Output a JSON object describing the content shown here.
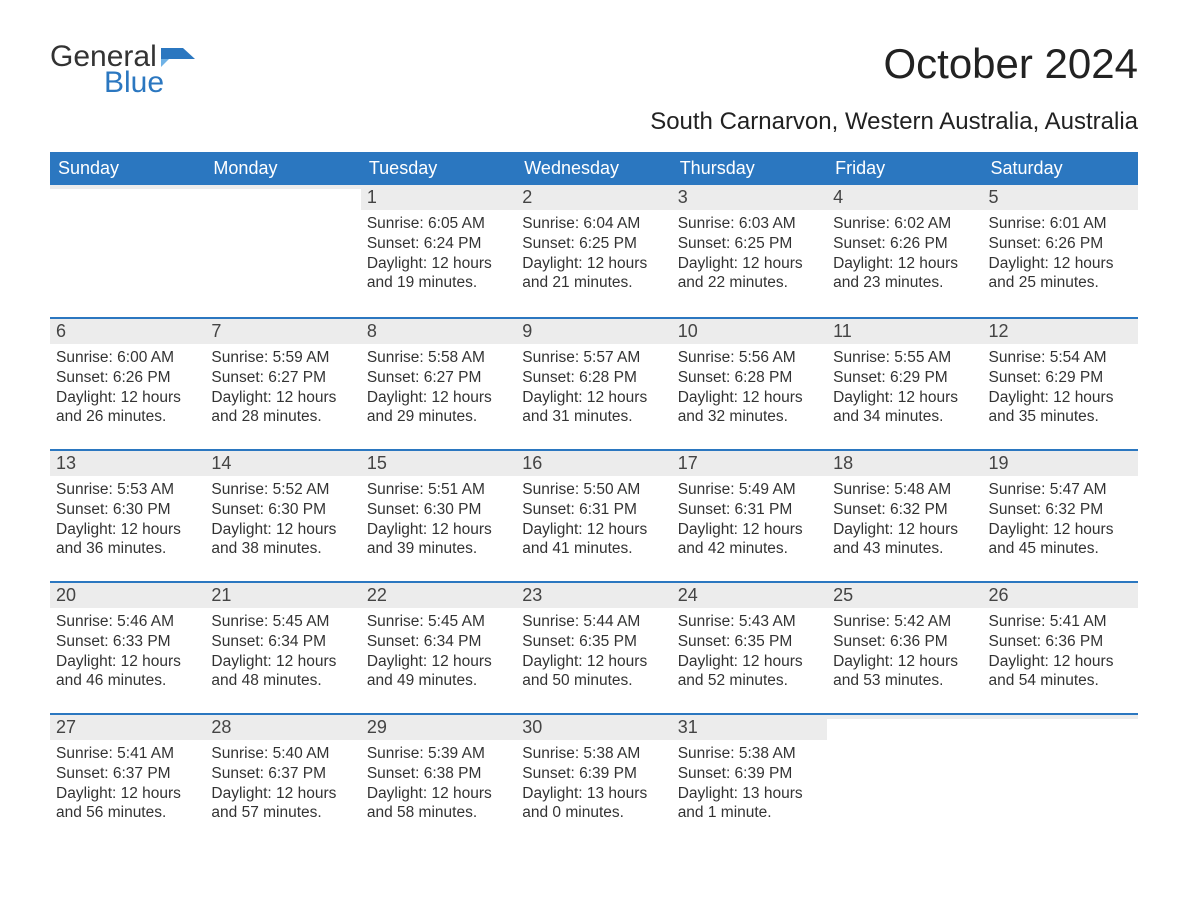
{
  "logo": {
    "word1": "General",
    "word2": "Blue",
    "icon_primary": "#2b77c0",
    "icon_accent": "#6fb2e6"
  },
  "title": "October 2024",
  "subtitle": "South Carnarvon, Western Australia, Australia",
  "header_bg": "#2b77c0",
  "header_fg": "#ffffff",
  "daynum_bg": "#ececec",
  "week_border": "#2b77c0",
  "day_headers": [
    "Sunday",
    "Monday",
    "Tuesday",
    "Wednesday",
    "Thursday",
    "Friday",
    "Saturday"
  ],
  "weeks": [
    [
      {
        "num": "",
        "sunrise": "",
        "sunset": "",
        "daylight": ""
      },
      {
        "num": "",
        "sunrise": "",
        "sunset": "",
        "daylight": ""
      },
      {
        "num": "1",
        "sunrise": "Sunrise: 6:05 AM",
        "sunset": "Sunset: 6:24 PM",
        "daylight": "Daylight: 12 hours and 19 minutes."
      },
      {
        "num": "2",
        "sunrise": "Sunrise: 6:04 AM",
        "sunset": "Sunset: 6:25 PM",
        "daylight": "Daylight: 12 hours and 21 minutes."
      },
      {
        "num": "3",
        "sunrise": "Sunrise: 6:03 AM",
        "sunset": "Sunset: 6:25 PM",
        "daylight": "Daylight: 12 hours and 22 minutes."
      },
      {
        "num": "4",
        "sunrise": "Sunrise: 6:02 AM",
        "sunset": "Sunset: 6:26 PM",
        "daylight": "Daylight: 12 hours and 23 minutes."
      },
      {
        "num": "5",
        "sunrise": "Sunrise: 6:01 AM",
        "sunset": "Sunset: 6:26 PM",
        "daylight": "Daylight: 12 hours and 25 minutes."
      }
    ],
    [
      {
        "num": "6",
        "sunrise": "Sunrise: 6:00 AM",
        "sunset": "Sunset: 6:26 PM",
        "daylight": "Daylight: 12 hours and 26 minutes."
      },
      {
        "num": "7",
        "sunrise": "Sunrise: 5:59 AM",
        "sunset": "Sunset: 6:27 PM",
        "daylight": "Daylight: 12 hours and 28 minutes."
      },
      {
        "num": "8",
        "sunrise": "Sunrise: 5:58 AM",
        "sunset": "Sunset: 6:27 PM",
        "daylight": "Daylight: 12 hours and 29 minutes."
      },
      {
        "num": "9",
        "sunrise": "Sunrise: 5:57 AM",
        "sunset": "Sunset: 6:28 PM",
        "daylight": "Daylight: 12 hours and 31 minutes."
      },
      {
        "num": "10",
        "sunrise": "Sunrise: 5:56 AM",
        "sunset": "Sunset: 6:28 PM",
        "daylight": "Daylight: 12 hours and 32 minutes."
      },
      {
        "num": "11",
        "sunrise": "Sunrise: 5:55 AM",
        "sunset": "Sunset: 6:29 PM",
        "daylight": "Daylight: 12 hours and 34 minutes."
      },
      {
        "num": "12",
        "sunrise": "Sunrise: 5:54 AM",
        "sunset": "Sunset: 6:29 PM",
        "daylight": "Daylight: 12 hours and 35 minutes."
      }
    ],
    [
      {
        "num": "13",
        "sunrise": "Sunrise: 5:53 AM",
        "sunset": "Sunset: 6:30 PM",
        "daylight": "Daylight: 12 hours and 36 minutes."
      },
      {
        "num": "14",
        "sunrise": "Sunrise: 5:52 AM",
        "sunset": "Sunset: 6:30 PM",
        "daylight": "Daylight: 12 hours and 38 minutes."
      },
      {
        "num": "15",
        "sunrise": "Sunrise: 5:51 AM",
        "sunset": "Sunset: 6:30 PM",
        "daylight": "Daylight: 12 hours and 39 minutes."
      },
      {
        "num": "16",
        "sunrise": "Sunrise: 5:50 AM",
        "sunset": "Sunset: 6:31 PM",
        "daylight": "Daylight: 12 hours and 41 minutes."
      },
      {
        "num": "17",
        "sunrise": "Sunrise: 5:49 AM",
        "sunset": "Sunset: 6:31 PM",
        "daylight": "Daylight: 12 hours and 42 minutes."
      },
      {
        "num": "18",
        "sunrise": "Sunrise: 5:48 AM",
        "sunset": "Sunset: 6:32 PM",
        "daylight": "Daylight: 12 hours and 43 minutes."
      },
      {
        "num": "19",
        "sunrise": "Sunrise: 5:47 AM",
        "sunset": "Sunset: 6:32 PM",
        "daylight": "Daylight: 12 hours and 45 minutes."
      }
    ],
    [
      {
        "num": "20",
        "sunrise": "Sunrise: 5:46 AM",
        "sunset": "Sunset: 6:33 PM",
        "daylight": "Daylight: 12 hours and 46 minutes."
      },
      {
        "num": "21",
        "sunrise": "Sunrise: 5:45 AM",
        "sunset": "Sunset: 6:34 PM",
        "daylight": "Daylight: 12 hours and 48 minutes."
      },
      {
        "num": "22",
        "sunrise": "Sunrise: 5:45 AM",
        "sunset": "Sunset: 6:34 PM",
        "daylight": "Daylight: 12 hours and 49 minutes."
      },
      {
        "num": "23",
        "sunrise": "Sunrise: 5:44 AM",
        "sunset": "Sunset: 6:35 PM",
        "daylight": "Daylight: 12 hours and 50 minutes."
      },
      {
        "num": "24",
        "sunrise": "Sunrise: 5:43 AM",
        "sunset": "Sunset: 6:35 PM",
        "daylight": "Daylight: 12 hours and 52 minutes."
      },
      {
        "num": "25",
        "sunrise": "Sunrise: 5:42 AM",
        "sunset": "Sunset: 6:36 PM",
        "daylight": "Daylight: 12 hours and 53 minutes."
      },
      {
        "num": "26",
        "sunrise": "Sunrise: 5:41 AM",
        "sunset": "Sunset: 6:36 PM",
        "daylight": "Daylight: 12 hours and 54 minutes."
      }
    ],
    [
      {
        "num": "27",
        "sunrise": "Sunrise: 5:41 AM",
        "sunset": "Sunset: 6:37 PM",
        "daylight": "Daylight: 12 hours and 56 minutes."
      },
      {
        "num": "28",
        "sunrise": "Sunrise: 5:40 AM",
        "sunset": "Sunset: 6:37 PM",
        "daylight": "Daylight: 12 hours and 57 minutes."
      },
      {
        "num": "29",
        "sunrise": "Sunrise: 5:39 AM",
        "sunset": "Sunset: 6:38 PM",
        "daylight": "Daylight: 12 hours and 58 minutes."
      },
      {
        "num": "30",
        "sunrise": "Sunrise: 5:38 AM",
        "sunset": "Sunset: 6:39 PM",
        "daylight": "Daylight: 13 hours and 0 minutes."
      },
      {
        "num": "31",
        "sunrise": "Sunrise: 5:38 AM",
        "sunset": "Sunset: 6:39 PM",
        "daylight": "Daylight: 13 hours and 1 minute."
      },
      {
        "num": "",
        "sunrise": "",
        "sunset": "",
        "daylight": ""
      },
      {
        "num": "",
        "sunrise": "",
        "sunset": "",
        "daylight": ""
      }
    ]
  ]
}
